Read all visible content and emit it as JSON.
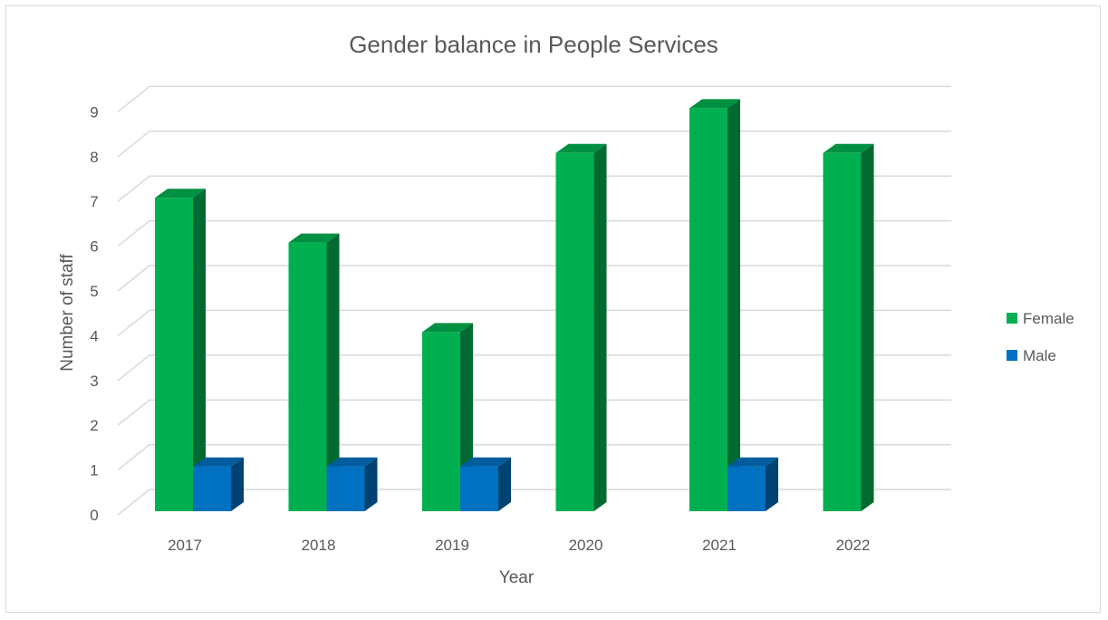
{
  "chart_data": {
    "type": "bar",
    "title": "Gender balance in People Services",
    "xlabel": "Year",
    "ylabel": "Number of staff",
    "categories": [
      "2017",
      "2018",
      "2019",
      "2020",
      "2021",
      "2022"
    ],
    "series": [
      {
        "name": "Female",
        "values": [
          7,
          6,
          4,
          8,
          9,
          8
        ],
        "color": "#00b050"
      },
      {
        "name": "Male",
        "values": [
          1,
          1,
          1,
          0,
          1,
          0
        ],
        "color": "#0070c0"
      }
    ],
    "ylim": [
      0,
      9
    ],
    "yticks": [
      "0",
      "1",
      "2",
      "3",
      "4",
      "5",
      "6",
      "7",
      "8",
      "9"
    ],
    "grid": true,
    "legend_position": "right",
    "style": "3d-clustered-column"
  }
}
